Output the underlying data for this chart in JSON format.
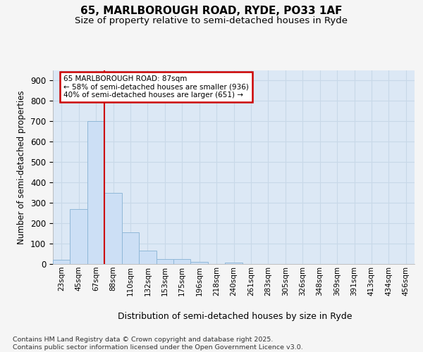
{
  "title1": "65, MARLBOROUGH ROAD, RYDE, PO33 1AF",
  "title2": "Size of property relative to semi-detached houses in Ryde",
  "xlabel": "Distribution of semi-detached houses by size in Ryde",
  "ylabel": "Number of semi-detached properties",
  "bin_labels": [
    "23sqm",
    "45sqm",
    "67sqm",
    "88sqm",
    "110sqm",
    "132sqm",
    "153sqm",
    "175sqm",
    "196sqm",
    "218sqm",
    "240sqm",
    "261sqm",
    "283sqm",
    "305sqm",
    "326sqm",
    "348sqm",
    "369sqm",
    "391sqm",
    "413sqm",
    "434sqm",
    "456sqm"
  ],
  "bar_values": [
    22,
    270,
    700,
    350,
    155,
    65,
    25,
    25,
    12,
    0,
    8,
    0,
    0,
    0,
    0,
    0,
    0,
    0,
    0,
    0,
    0
  ],
  "bar_color": "#ccdff5",
  "bar_edge_color": "#90b8d8",
  "property_bin_index": 3,
  "annotation_text": "65 MARLBOROUGH ROAD: 87sqm\n← 58% of semi-detached houses are smaller (936)\n40% of semi-detached houses are larger (651) →",
  "annotation_box_facecolor": "#ffffff",
  "annotation_border_color": "#cc0000",
  "ylim": [
    0,
    950
  ],
  "yticks": [
    0,
    100,
    200,
    300,
    400,
    500,
    600,
    700,
    800,
    900
  ],
  "grid_color": "#c8d8e8",
  "plot_bg_color": "#dce8f5",
  "fig_bg_color": "#f5f5f5",
  "red_line_color": "#cc0000",
  "footer": "Contains HM Land Registry data © Crown copyright and database right 2025.\nContains public sector information licensed under the Open Government Licence v3.0."
}
